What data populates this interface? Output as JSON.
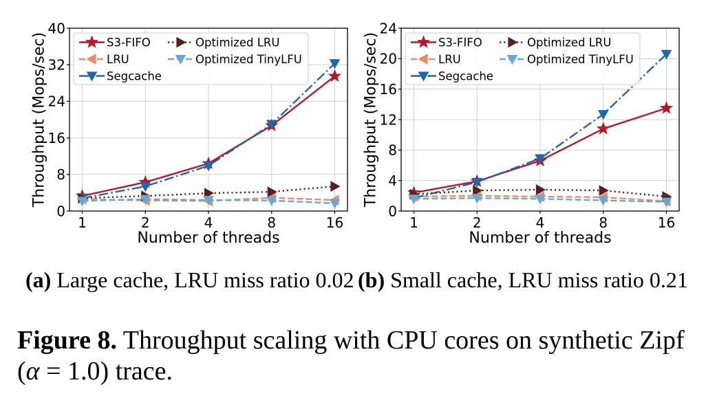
{
  "figure": {
    "caption_label": "Figure 8.",
    "caption_line1_rest": "Throughput scaling with CPU cores on synthetic Zipf",
    "caption_line2_open": "(",
    "caption_line2_symbol": "α",
    "caption_line2_rest": "= 1.0) trace."
  },
  "chart_data": [
    {
      "panel_label": "(a)",
      "subcaption": "Large cache, LRU miss ratio 0.02",
      "type": "line",
      "xlabel": "Number of threads",
      "ylabel": "Throughput (Mops/sec)",
      "x": [
        1,
        2,
        4,
        8,
        16
      ],
      "xticks": [
        "1",
        "2",
        "4",
        "8",
        "16"
      ],
      "ylim": [
        0,
        40
      ],
      "yticks": [
        0,
        8,
        16,
        24,
        32,
        40
      ],
      "grid": true,
      "legend": "upper-left",
      "series": [
        {
          "name": "S3-FIFO",
          "color": "#b2182b",
          "marker": "star",
          "linestyle": "solid",
          "values": [
            3.3,
            6.3,
            10.4,
            18.7,
            29.5
          ]
        },
        {
          "name": "LRU",
          "color": "#ef8a62",
          "marker": "triangle-left",
          "linestyle": "dashed",
          "values": [
            2.6,
            2.3,
            2.2,
            2.9,
            2.4
          ]
        },
        {
          "name": "Segcache",
          "color": "#2166ac",
          "marker": "triangle-down",
          "linestyle": "dash-dot",
          "values": [
            2.8,
            5.4,
            9.9,
            19.0,
            32.3
          ]
        },
        {
          "name": "Optimized LRU",
          "color": "#5a1f1b",
          "marker": "triangle-right",
          "linestyle": "dotted",
          "values": [
            2.8,
            3.3,
            3.9,
            4.2,
            5.4
          ]
        },
        {
          "name": "Optimized TinyLFU",
          "color": "#67a9cf",
          "marker": "triangle-down",
          "linestyle": "dashed",
          "values": [
            2.2,
            2.6,
            2.4,
            2.3,
            1.7
          ]
        }
      ]
    },
    {
      "panel_label": "(b)",
      "subcaption": "Small cache, LRU miss ratio 0.21",
      "type": "line",
      "xlabel": "Number of threads",
      "ylabel": "Throughput (Mops/sec)",
      "x": [
        1,
        2,
        4,
        8,
        16
      ],
      "xticks": [
        "1",
        "2",
        "4",
        "8",
        "16"
      ],
      "ylim": [
        0,
        24
      ],
      "yticks": [
        0,
        4,
        8,
        12,
        16,
        20,
        24
      ],
      "grid": true,
      "legend": "upper-left",
      "series": [
        {
          "name": "S3-FIFO",
          "color": "#b2182b",
          "marker": "star",
          "linestyle": "solid",
          "values": [
            2.4,
            3.9,
            6.6,
            10.8,
            13.5
          ]
        },
        {
          "name": "LRU",
          "color": "#ef8a62",
          "marker": "triangle-left",
          "linestyle": "dashed",
          "values": [
            1.9,
            2.0,
            1.9,
            1.8,
            1.3
          ]
        },
        {
          "name": "Segcache",
          "color": "#2166ac",
          "marker": "triangle-down",
          "linestyle": "dash-dot",
          "values": [
            1.7,
            3.8,
            6.9,
            12.7,
            20.6
          ]
        },
        {
          "name": "Optimized LRU",
          "color": "#5a1f1b",
          "marker": "triangle-right",
          "linestyle": "dotted",
          "values": [
            2.2,
            2.7,
            2.8,
            2.7,
            1.9
          ]
        },
        {
          "name": "Optimized TinyLFU",
          "color": "#67a9cf",
          "marker": "triangle-down",
          "linestyle": "dashed",
          "values": [
            1.6,
            1.7,
            1.6,
            1.4,
            1.2
          ]
        }
      ]
    }
  ]
}
